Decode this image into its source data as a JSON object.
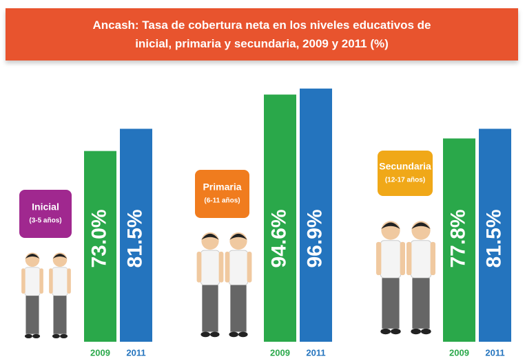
{
  "chart_data": {
    "type": "bar",
    "title": "Ancash: Tasa de cobertura neta en los niveles educativos de inicial, primaria y secundaria, 2009 y 2011 (%)",
    "categories": [
      "Inicial",
      "Primaria",
      "Secundaria"
    ],
    "age_ranges": [
      "(3-5 años)",
      "(6-11 años)",
      "(12-17 años)"
    ],
    "series": [
      {
        "name": "2009",
        "color": "#2aa84a",
        "values": [
          73.0,
          94.6,
          77.8
        ],
        "value_labels": [
          "73.0%",
          "94.6%",
          "77.8%"
        ]
      },
      {
        "name": "2011",
        "color": "#2474be",
        "values": [
          81.5,
          96.9,
          81.5
        ],
        "value_labels": [
          "81.5%",
          "96.9%",
          "81.5%"
        ]
      }
    ]
  }
}
